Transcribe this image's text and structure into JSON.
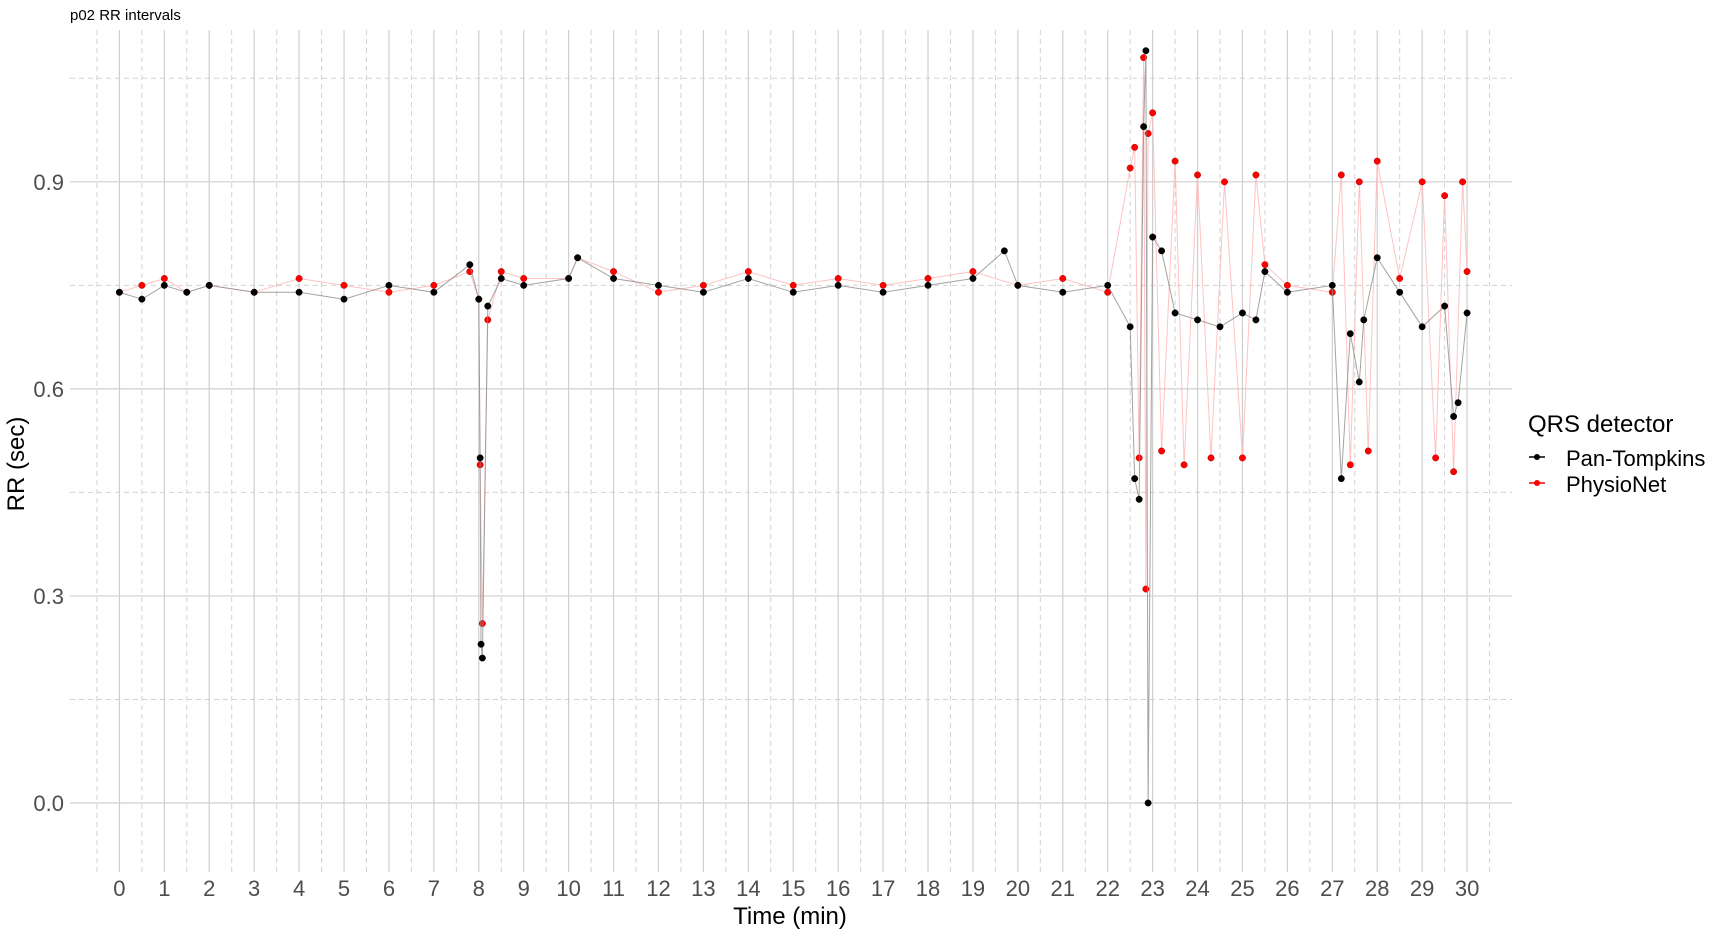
{
  "chart_data": {
    "type": "scatter",
    "title": "p02 RR intervals",
    "xlabel": "Time (min)",
    "ylabel": "RR (sec)",
    "xlim": [
      -1.1,
      31.0
    ],
    "ylim": [
      -0.1,
      1.12
    ],
    "x_ticks": [
      0,
      1,
      2,
      3,
      4,
      5,
      6,
      7,
      8,
      9,
      10,
      11,
      12,
      13,
      14,
      15,
      16,
      17,
      18,
      19,
      20,
      21,
      22,
      23,
      24,
      25,
      26,
      27,
      28,
      29,
      30
    ],
    "x_tick_labels": [
      "0",
      "1",
      "2",
      "3",
      "4",
      "5",
      "6",
      "7",
      "8",
      "9",
      "10",
      "11",
      "12",
      "13",
      "14",
      "15",
      "16",
      "17",
      "18",
      "19",
      "20",
      "21",
      "22",
      "23",
      "24",
      "25",
      "26",
      "27",
      "28",
      "29",
      "30"
    ],
    "y_ticks": [
      0.0,
      0.3,
      0.6,
      0.9
    ],
    "y_tick_labels": [
      "0.0",
      "0.3",
      "0.6",
      "0.9"
    ],
    "grid": true,
    "legend_title": "QRS detector",
    "legend_position": "right",
    "series": [
      {
        "name": "Pan-Tompkins",
        "color": "#000000",
        "x": [
          0,
          0.5,
          1,
          1.5,
          2,
          3,
          4,
          5,
          6,
          7,
          7.8,
          8.0,
          8.03,
          8.05,
          8.08,
          8.2,
          8.5,
          9,
          10,
          10.2,
          11,
          12,
          13,
          14,
          15,
          16,
          17,
          18,
          19,
          19.7,
          20,
          21,
          22,
          22.5,
          22.6,
          22.7,
          22.8,
          22.85,
          22.9,
          23.0,
          23.2,
          23.5,
          24,
          24.5,
          25,
          25.3,
          25.5,
          26,
          27,
          27.2,
          27.4,
          27.6,
          27.7,
          28,
          28.5,
          29,
          29.5,
          29.7,
          29.8,
          30
        ],
        "y": [
          0.74,
          0.73,
          0.75,
          0.74,
          0.75,
          0.74,
          0.74,
          0.73,
          0.75,
          0.74,
          0.78,
          0.73,
          0.5,
          0.23,
          0.21,
          0.72,
          0.76,
          0.75,
          0.76,
          0.79,
          0.76,
          0.75,
          0.74,
          0.76,
          0.74,
          0.75,
          0.74,
          0.75,
          0.76,
          0.8,
          0.75,
          0.74,
          0.75,
          0.69,
          0.47,
          0.44,
          0.98,
          1.09,
          0.0,
          0.82,
          0.8,
          0.71,
          0.7,
          0.69,
          0.71,
          0.7,
          0.77,
          0.74,
          0.75,
          0.47,
          0.68,
          0.61,
          0.7,
          0.79,
          0.74,
          0.69,
          0.72,
          0.56,
          0.58,
          0.71
        ]
      },
      {
        "name": "PhysioNet",
        "color": "#ff0000",
        "x": [
          0,
          0.5,
          1,
          1.5,
          2,
          3,
          4,
          5,
          6,
          7,
          7.8,
          8.0,
          8.03,
          8.08,
          8.2,
          8.5,
          9,
          10,
          10.2,
          11,
          12,
          13,
          14,
          15,
          16,
          17,
          18,
          19,
          20,
          21,
          22,
          22.5,
          22.6,
          22.7,
          22.8,
          22.85,
          22.9,
          23.0,
          23.2,
          23.5,
          23.7,
          24,
          24.3,
          24.6,
          25,
          25.3,
          25.5,
          26,
          27,
          27.2,
          27.4,
          27.6,
          27.8,
          28,
          28.5,
          29,
          29.3,
          29.5,
          29.7,
          29.9,
          30
        ],
        "y": [
          0.74,
          0.75,
          0.76,
          0.74,
          0.75,
          0.74,
          0.76,
          0.75,
          0.74,
          0.75,
          0.77,
          0.73,
          0.49,
          0.26,
          0.7,
          0.77,
          0.76,
          0.76,
          0.79,
          0.77,
          0.74,
          0.75,
          0.77,
          0.75,
          0.76,
          0.75,
          0.76,
          0.77,
          0.75,
          0.76,
          0.74,
          0.92,
          0.95,
          0.5,
          1.08,
          0.31,
          0.97,
          1.0,
          0.51,
          0.93,
          0.49,
          0.91,
          0.5,
          0.9,
          0.5,
          0.91,
          0.78,
          0.75,
          0.74,
          0.91,
          0.49,
          0.9,
          0.51,
          0.93,
          0.76,
          0.9,
          0.5,
          0.88,
          0.48,
          0.9,
          0.77
        ]
      }
    ]
  }
}
